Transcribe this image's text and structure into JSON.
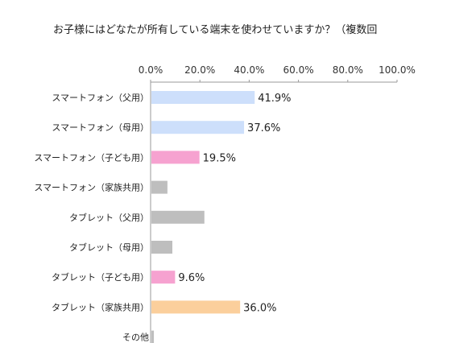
{
  "chart_data": {
    "type": "bar",
    "orientation": "horizontal",
    "title": "お子様にはどなたが所有している端末を使わせていますか？（複数回",
    "xlim": [
      0,
      100
    ],
    "x_ticks": [
      "0.0%",
      "20.0%",
      "40.0%",
      "60.0%",
      "80.0%",
      "100.0%"
    ],
    "grid": false,
    "categories": [
      "スマートフォン（父用）",
      "スマートフォン（母用）",
      "スマートフォン（子ども用）",
      "スマートフォン（家族共用）",
      "タブレット（父用）",
      "タブレット（母用）",
      "タブレット（子ども用）",
      "タブレット（家族共用）",
      "その他"
    ],
    "values": [
      41.9,
      37.6,
      19.5,
      6.5,
      21.5,
      8.5,
      9.6,
      36.0,
      1.0
    ],
    "data_labels": [
      "41.9%",
      "37.6%",
      "19.5%",
      "",
      "",
      "",
      "9.6%",
      "36.0%",
      ""
    ],
    "bar_colors": [
      "#cddffb",
      "#cddffb",
      "#f6a2d0",
      "#bebebe",
      "#bebebe",
      "#bebebe",
      "#f6a2d0",
      "#fbcf9c",
      "#bebebe"
    ]
  }
}
